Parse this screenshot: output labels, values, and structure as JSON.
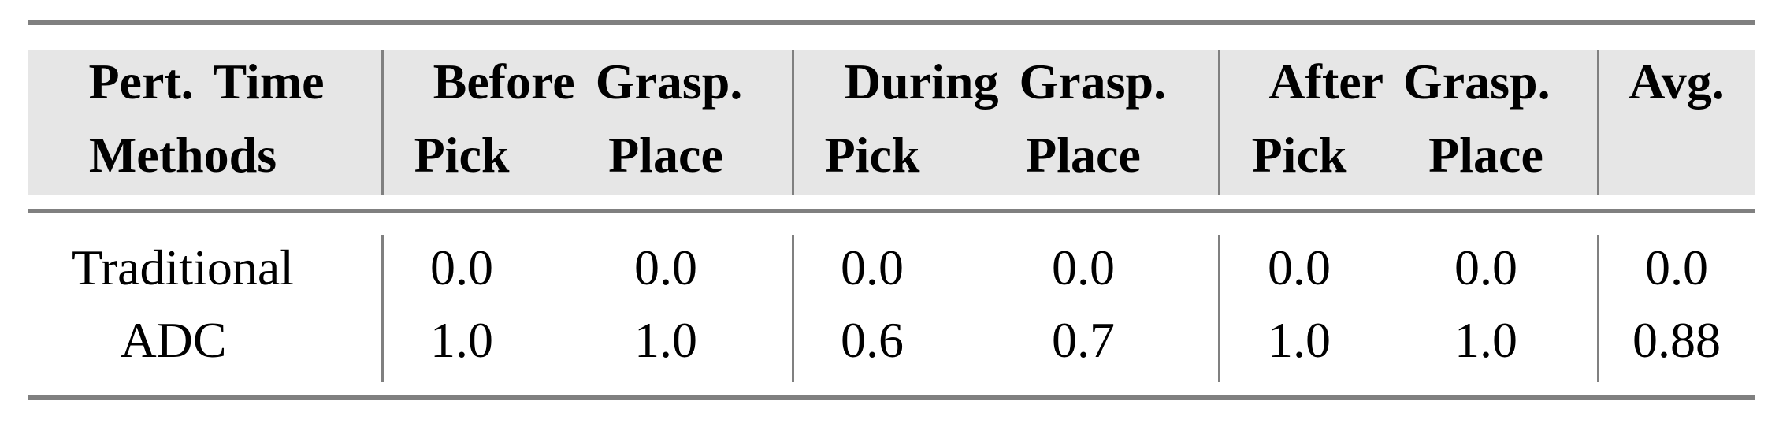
{
  "header": {
    "corner_top": "Pert. Time",
    "corner_bottom": "Methods",
    "groups": [
      "Before Grasp.",
      "During Grasp.",
      "After Grasp.",
      "Avg."
    ],
    "subcolumns": [
      "Pick",
      "Place",
      "Pick",
      "Place",
      "Pick",
      "Place"
    ]
  },
  "rows": [
    {
      "method": "Traditional",
      "values": [
        "0.0",
        "0.0",
        "0.0",
        "0.0",
        "0.0",
        "0.0",
        "0.0"
      ]
    },
    {
      "method": "ADC",
      "values": [
        "1.0",
        "1.0",
        "0.6",
        "0.7",
        "1.0",
        "1.0",
        "0.88"
      ]
    }
  ],
  "colors": {
    "header_bg": "#e6e6e6",
    "rule": "#808080"
  }
}
